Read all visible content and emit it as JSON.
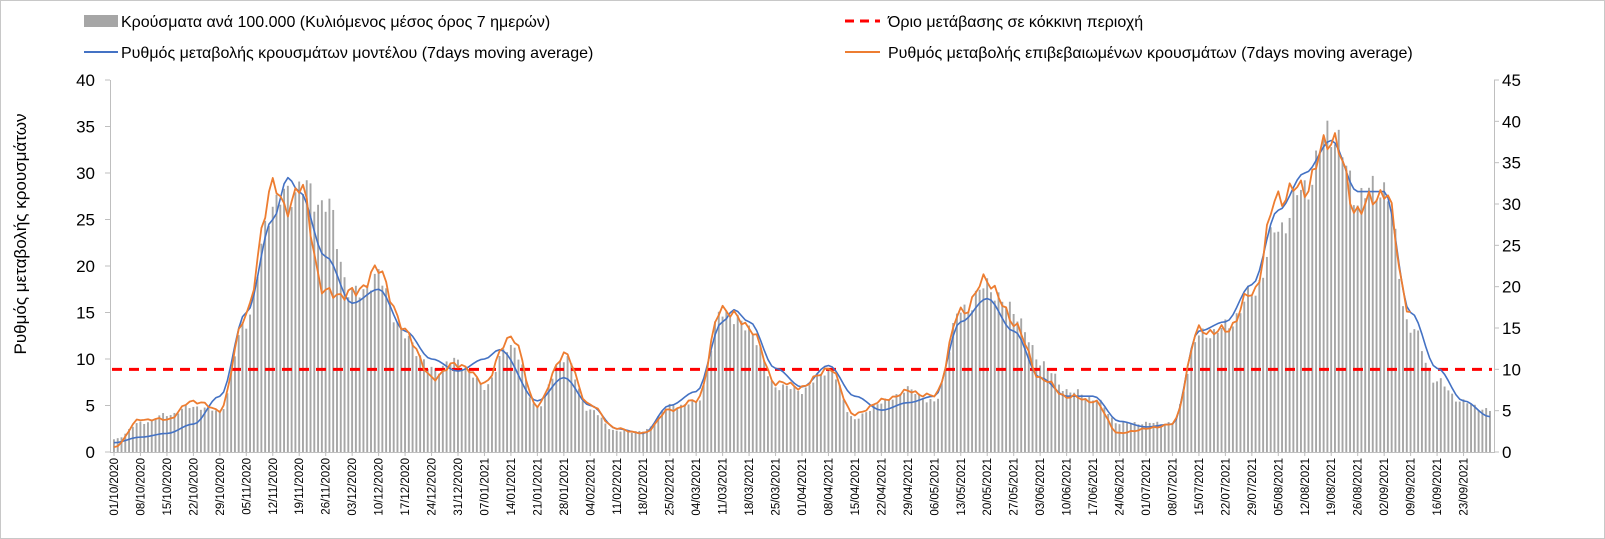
{
  "chart_data": {
    "type": "bar+line",
    "ylabel": "Ρυθμός μεταβολής κρουσμάτων",
    "left_axis": {
      "min": 0,
      "max": 40,
      "ticks": [
        "0",
        "5",
        "10",
        "15",
        "20",
        "25",
        "30",
        "35",
        "40"
      ]
    },
    "right_axis": {
      "min": 0,
      "max": 45,
      "ticks": [
        "0",
        "5",
        "10",
        "15",
        "20",
        "25",
        "30",
        "35",
        "40",
        "45"
      ]
    },
    "start_date": "01/10/2020",
    "num_days": 365,
    "x_tick_labels": [
      "01/10/2020",
      "08/10/2020",
      "15/10/2020",
      "22/10/2020",
      "29/10/2020",
      "05/11/2020",
      "12/11/2020",
      "19/11/2020",
      "26/11/2020",
      "03/12/2020",
      "10/12/2020",
      "17/12/2020",
      "24/12/2020",
      "31/12/2020",
      "07/01/2021",
      "14/01/2021",
      "21/01/2021",
      "28/01/2021",
      "04/02/2021",
      "11/02/2021",
      "18/02/2021",
      "25/02/2021",
      "04/03/2021",
      "11/03/2021",
      "18/03/2021",
      "25/03/2021",
      "01/04/2021",
      "08/04/2021",
      "15/04/2021",
      "22/04/2021",
      "29/04/2021",
      "06/05/2021",
      "13/05/2021",
      "20/05/2021",
      "27/05/2021",
      "03/06/2021",
      "10/06/2021",
      "17/06/2021",
      "24/06/2021",
      "01/07/2021",
      "08/07/2021",
      "15/07/2021",
      "22/07/2021",
      "29/07/2021",
      "05/08/2021",
      "12/08/2021",
      "19/08/2021",
      "26/08/2021",
      "02/09/2021",
      "09/09/2021",
      "16/09/2021",
      "23/09/2021"
    ],
    "threshold": {
      "value": 10,
      "axis": "right",
      "label": "Όριο μετάβασης σε κόκκινη περιοχή",
      "color": "#ff0000"
    },
    "series": [
      {
        "name": "Κρούσματα ανά 100.000 (Κυλιόμενος μέσος όρος 7 ημερών)",
        "kind": "bar",
        "axis": "right",
        "color": "#a6a6a6",
        "keypoints": [
          [
            0,
            1.5
          ],
          [
            7,
            3.5
          ],
          [
            14,
            4.5
          ],
          [
            21,
            5.5
          ],
          [
            28,
            5
          ],
          [
            35,
            16
          ],
          [
            42,
            30
          ],
          [
            49,
            32
          ],
          [
            56,
            30
          ],
          [
            63,
            19
          ],
          [
            70,
            21
          ],
          [
            77,
            14
          ],
          [
            84,
            10
          ],
          [
            91,
            11
          ],
          [
            98,
            8
          ],
          [
            105,
            13
          ],
          [
            112,
            5.5
          ],
          [
            119,
            11.5
          ],
          [
            126,
            5
          ],
          [
            133,
            2.5
          ],
          [
            140,
            2.5
          ],
          [
            147,
            5.5
          ],
          [
            154,
            6
          ],
          [
            161,
            17
          ],
          [
            168,
            15
          ],
          [
            175,
            8
          ],
          [
            182,
            7.5
          ],
          [
            189,
            10
          ],
          [
            196,
            4
          ],
          [
            203,
            6
          ],
          [
            210,
            7.5
          ],
          [
            217,
            6
          ],
          [
            224,
            17
          ],
          [
            231,
            20
          ],
          [
            238,
            17
          ],
          [
            245,
            11
          ],
          [
            252,
            7.5
          ],
          [
            259,
            6.5
          ],
          [
            266,
            3.5
          ],
          [
            273,
            3.5
          ],
          [
            280,
            3.5
          ],
          [
            287,
            14
          ],
          [
            294,
            15
          ],
          [
            301,
            19
          ],
          [
            308,
            27
          ],
          [
            315,
            32
          ],
          [
            322,
            39
          ],
          [
            329,
            31
          ],
          [
            336,
            32
          ],
          [
            343,
            15
          ],
          [
            350,
            8.5
          ],
          [
            357,
            6
          ],
          [
            364,
            5
          ]
        ]
      },
      {
        "name": "Ρυθμός μεταβολής κρουσμάτων μοντέλου (7days moving average)",
        "kind": "line",
        "axis": "left",
        "color": "#4472c4",
        "keypoints": [
          [
            0,
            1
          ],
          [
            7,
            1.6
          ],
          [
            14,
            2
          ],
          [
            21,
            3
          ],
          [
            28,
            6
          ],
          [
            35,
            15
          ],
          [
            42,
            25
          ],
          [
            46,
            29.5
          ],
          [
            49,
            28
          ],
          [
            56,
            21
          ],
          [
            63,
            16
          ],
          [
            70,
            17.5
          ],
          [
            77,
            13
          ],
          [
            84,
            10
          ],
          [
            91,
            8.7
          ],
          [
            98,
            10
          ],
          [
            102,
            11
          ],
          [
            112,
            5.5
          ],
          [
            119,
            8
          ],
          [
            126,
            5
          ],
          [
            133,
            2.5
          ],
          [
            140,
            2
          ],
          [
            147,
            5
          ],
          [
            154,
            6.5
          ],
          [
            161,
            14
          ],
          [
            164,
            15.3
          ],
          [
            168,
            14
          ],
          [
            175,
            9
          ],
          [
            182,
            7
          ],
          [
            189,
            9.3
          ],
          [
            196,
            6
          ],
          [
            203,
            4.5
          ],
          [
            210,
            5.3
          ],
          [
            217,
            6
          ],
          [
            224,
            14
          ],
          [
            231,
            16.5
          ],
          [
            238,
            13
          ],
          [
            245,
            8
          ],
          [
            252,
            6
          ],
          [
            259,
            6
          ],
          [
            266,
            3.3
          ],
          [
            273,
            2.7
          ],
          [
            280,
            3
          ],
          [
            287,
            13
          ],
          [
            294,
            14
          ],
          [
            301,
            18
          ],
          [
            308,
            26
          ],
          [
            315,
            30
          ],
          [
            322,
            33.5
          ],
          [
            329,
            28
          ],
          [
            336,
            28
          ],
          [
            343,
            15
          ],
          [
            350,
            9
          ],
          [
            357,
            5.5
          ],
          [
            364,
            3.8
          ]
        ]
      },
      {
        "name": "Ρυθμός μεταβολής επιβεβαιωμένων κρουσμάτων (7days moving average)",
        "kind": "line",
        "axis": "left",
        "color": "#ed7d31",
        "keypoints": [
          [
            0,
            0.5
          ],
          [
            7,
            3.5
          ],
          [
            14,
            3.5
          ],
          [
            21,
            5.5
          ],
          [
            28,
            4.5
          ],
          [
            35,
            15
          ],
          [
            42,
            29
          ],
          [
            45,
            26
          ],
          [
            49,
            28.5
          ],
          [
            56,
            17
          ],
          [
            63,
            17
          ],
          [
            70,
            19.5
          ],
          [
            77,
            13
          ],
          [
            84,
            8
          ],
          [
            91,
            9.5
          ],
          [
            98,
            7.5
          ],
          [
            105,
            12.5
          ],
          [
            112,
            5
          ],
          [
            119,
            10.5
          ],
          [
            126,
            5
          ],
          [
            133,
            2.5
          ],
          [
            140,
            2
          ],
          [
            147,
            4.5
          ],
          [
            154,
            5.5
          ],
          [
            161,
            15.5
          ],
          [
            168,
            13.5
          ],
          [
            175,
            7.5
          ],
          [
            182,
            7
          ],
          [
            189,
            9
          ],
          [
            196,
            4
          ],
          [
            203,
            5.5
          ],
          [
            210,
            6.5
          ],
          [
            217,
            6
          ],
          [
            224,
            15
          ],
          [
            231,
            18.5
          ],
          [
            238,
            14
          ],
          [
            245,
            8
          ],
          [
            252,
            6
          ],
          [
            259,
            5.5
          ],
          [
            266,
            2
          ],
          [
            273,
            2.5
          ],
          [
            280,
            3
          ],
          [
            287,
            13
          ],
          [
            294,
            13
          ],
          [
            301,
            17
          ],
          [
            308,
            27.5
          ],
          [
            315,
            28.5
          ],
          [
            322,
            34
          ],
          [
            329,
            26
          ],
          [
            336,
            28
          ],
          [
            343,
            15
          ]
        ]
      }
    ],
    "legend": {
      "bars": "Κρούσματα ανά 100.000 (Κυλιόμενος μέσος όρος 7 ημερών)",
      "threshold": "Όριο μετάβασης σε κόκκινη περιοχή",
      "model": "Ρυθμός μεταβολής κρουσμάτων μοντέλου (7days moving average)",
      "confirmed": "Ρυθμός μεταβολής επιβεβαιωμένων κρουσμάτων (7days moving average)"
    }
  }
}
